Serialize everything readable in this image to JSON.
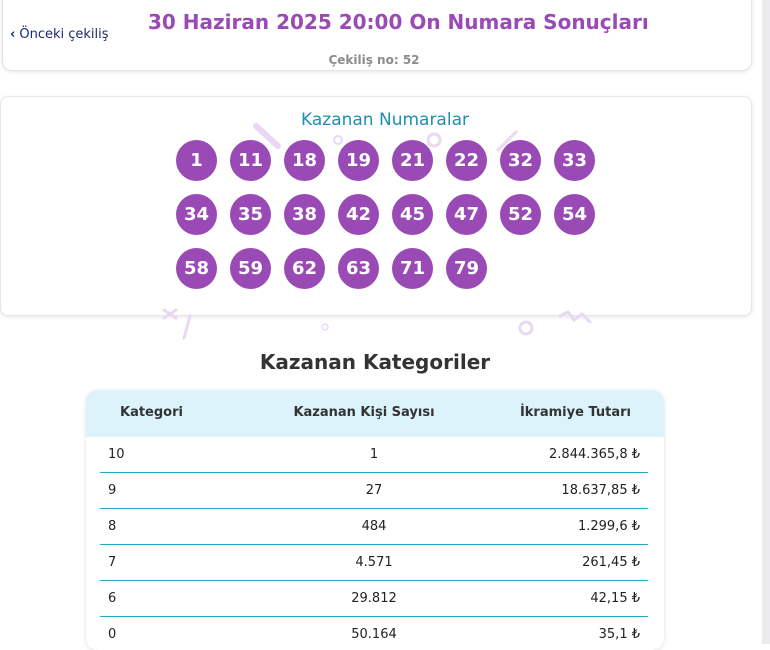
{
  "header": {
    "back_label": "Önceki çekiliş",
    "title": "30 Haziran 2025 20:00 On Numara Sonuçları",
    "draw_number": "Çekiliş no: 52"
  },
  "numbers": {
    "title": "Kazanan Numaralar",
    "balls": [
      "1",
      "11",
      "18",
      "19",
      "21",
      "22",
      "32",
      "33",
      "34",
      "35",
      "38",
      "42",
      "45",
      "47",
      "52",
      "54",
      "58",
      "59",
      "62",
      "63",
      "71",
      "79"
    ]
  },
  "categories": {
    "heading": "Kazanan Kategoriler",
    "columns": [
      "Kategori",
      "Kazanan Kişi Sayısı",
      "İkramiye Tutarı"
    ],
    "rows": [
      {
        "category": "10",
        "winners": "1",
        "prize": "2.844.365,8 ₺"
      },
      {
        "category": "9",
        "winners": "27",
        "prize": "18.637,85 ₺"
      },
      {
        "category": "8",
        "winners": "484",
        "prize": "1.299,6 ₺"
      },
      {
        "category": "7",
        "winners": "4.571",
        "prize": "261,45 ₺"
      },
      {
        "category": "6",
        "winners": "29.812",
        "prize": "42,15 ₺"
      },
      {
        "category": "0",
        "winners": "50.164",
        "prize": "35,1 ₺"
      }
    ]
  },
  "colors": {
    "accent": "#9a4ab5",
    "title_blue": "#1d8fb0",
    "table_header": "#dcf3fb",
    "row_divider": "#2aa7c5"
  }
}
